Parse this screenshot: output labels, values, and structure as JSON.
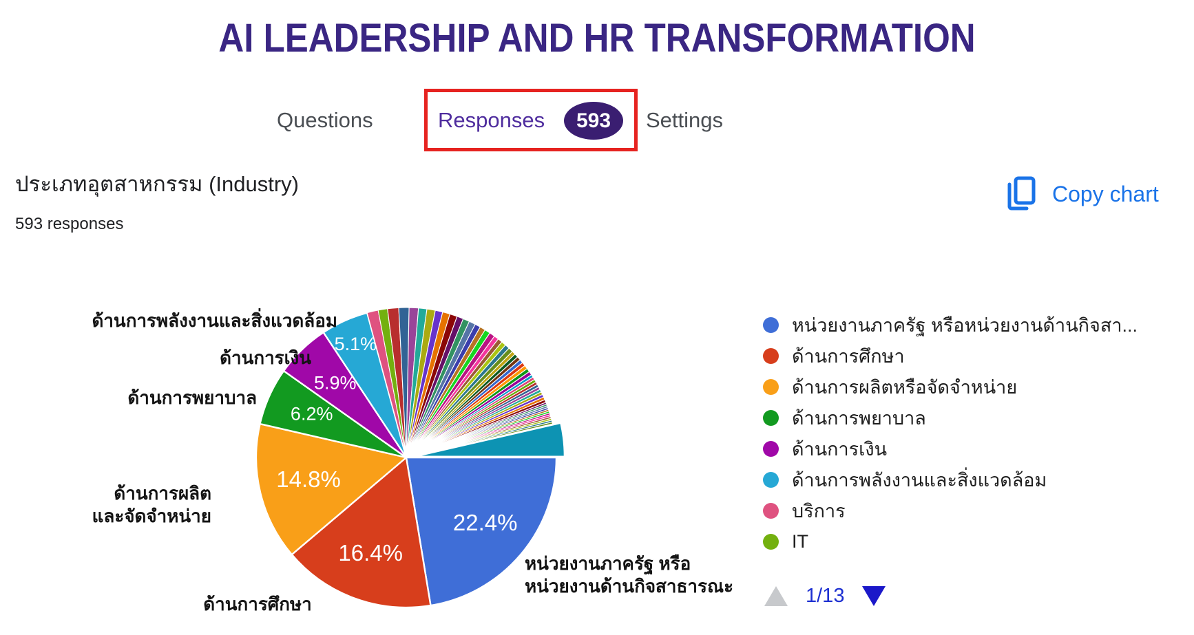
{
  "header": {
    "title": "AI LEADERSHIP AND HR TRANSFORMATION"
  },
  "tabs": {
    "questions": "Questions",
    "responses": "Responses",
    "responses_count": "593",
    "settings": "Settings"
  },
  "question": {
    "title": "ประเภทอุตสาหกรรม (Industry)",
    "responses_text": "593 responses",
    "copy_chart_label": "Copy chart"
  },
  "pager": {
    "label": "1/13"
  },
  "colors": {
    "title_purple": "#3a2683",
    "tab_active_purple": "#4f2d9e",
    "badge_purple": "#3a1e71",
    "annotation_red": "#e62320",
    "link_blue": "#1a73e8",
    "pager_blue": "#1b18c9"
  },
  "chart_data": {
    "type": "pie",
    "title": "ประเภทอุตสาหกรรม (Industry)",
    "total_responses": 593,
    "legend_position": "right",
    "slices": [
      {
        "label": "หน่วยงานภาครัฐ หรือหน่วยงานด้านกิจสาธารณะ",
        "pct": 22.4,
        "color": "#3F6ED7",
        "show_pct": true
      },
      {
        "label": "ด้านการศึกษา",
        "pct": 16.4,
        "color": "#D73E1C",
        "show_pct": true
      },
      {
        "label": "ด้านการผลิตหรือจัดจำหน่าย",
        "pct": 14.8,
        "color": "#F99F18",
        "show_pct": true
      },
      {
        "label": "ด้านการพยาบาล",
        "pct": 6.2,
        "color": "#129A20",
        "show_pct": true
      },
      {
        "label": "ด้านการเงิน",
        "pct": 5.9,
        "color": "#A008A8",
        "show_pct": true
      },
      {
        "label": "ด้านการพลังงานและสิ่งแวดล้อม",
        "pct": 5.1,
        "color": "#26A8D5",
        "show_pct": true
      },
      {
        "label": "บริการ",
        "pct": 1.2,
        "color": "#DF5280",
        "show_pct": false
      },
      {
        "label": "IT",
        "pct": 1.0,
        "color": "#73B00F",
        "show_pct": false
      }
    ],
    "others": {
      "pcts": [
        1.2,
        1.1,
        1.0,
        0.9,
        0.9,
        0.8,
        0.8,
        0.8,
        0.7,
        0.7,
        0.7,
        0.6,
        0.6,
        0.6,
        0.6,
        0.5,
        0.5,
        0.5,
        0.5,
        0.5,
        0.4,
        0.4,
        0.4,
        0.4,
        0.4,
        0.4,
        0.4,
        0.4,
        0.3,
        0.3,
        0.3,
        0.3,
        0.3,
        0.3,
        0.3,
        0.3,
        0.3,
        0.3,
        0.3,
        0.2,
        0.2,
        0.2,
        0.2,
        0.2,
        0.2,
        0.2,
        0.2,
        0.2,
        0.2,
        0.2,
        0.2
      ],
      "colors": [
        "#B82E2E",
        "#316395",
        "#994499",
        "#22AA99",
        "#AAAA11",
        "#6633CC",
        "#E67300",
        "#8B0707",
        "#651067",
        "#329262",
        "#5574A6",
        "#3B3EAC",
        "#B77322",
        "#16D620",
        "#B91383",
        "#F4359E",
        "#9C5935",
        "#A9C413",
        "#2A778D",
        "#668D1C",
        "#BEA413",
        "#0C5922",
        "#743411",
        "#3366CC",
        "#DC3912",
        "#FF9900",
        "#109618",
        "#990099",
        "#0099C6",
        "#DD4477",
        "#66AA00",
        "#B82E2E",
        "#316395",
        "#994499",
        "#22AA99",
        "#AAAA11",
        "#6633CC",
        "#E67300",
        "#8B0707",
        "#651067",
        "#329262",
        "#5574A6",
        "#3B3EAC",
        "#B77322",
        "#16D620",
        "#B91383",
        "#F4359E",
        "#9C5935",
        "#A9C413",
        "#2A778D",
        "#668D1C"
      ]
    },
    "last_slice": {
      "pct": 3.6,
      "color": "#0D93B3",
      "exploded": true
    },
    "legend": [
      "หน่วยงานภาครัฐ หรือหน่วยงานด้านกิจสา...",
      "ด้านการศึกษา",
      "ด้านการผลิตหรือจัดจำหน่าย",
      "ด้านการพยาบาล",
      "ด้านการเงิน",
      "ด้านการพลังงานและสิ่งแวดล้อม",
      "บริการ",
      "IT"
    ],
    "callouts": [
      {
        "lines": [
          "ด้านการพลังงานและสิ่งแวดล้อม"
        ]
      },
      {
        "lines": [
          "ด้านการเงิน"
        ]
      },
      {
        "lines": [
          "ด้านการพยาบาล"
        ]
      },
      {
        "lines": [
          "ด้านการผลิต",
          "และจัดจำหน่าย"
        ]
      },
      {
        "lines": [
          "ด้านการศึกษา"
        ]
      },
      {
        "lines": [
          "หน่วยงานภาครัฐ หรือ",
          "หน่วยงานด้านกิจสาธารณะ"
        ]
      }
    ]
  }
}
